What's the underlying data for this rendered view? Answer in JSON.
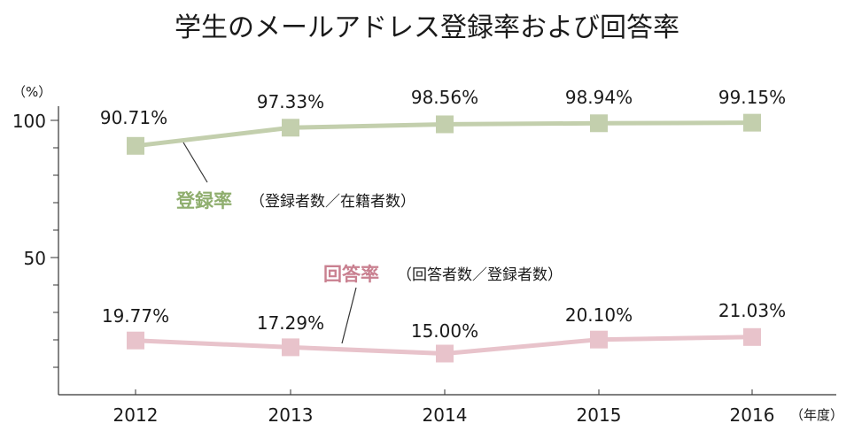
{
  "title": "学生のメールアドレス登録率および回答率",
  "chart_data": {
    "type": "line",
    "title": "学生のメールアドレス登録率および回答率",
    "categories": [
      "2012",
      "2013",
      "2014",
      "2015",
      "2016"
    ],
    "x_unit": "（年度）",
    "y_unit": "（%）",
    "ylim": [
      0,
      100
    ],
    "y_ticks": [
      "100",
      "50"
    ],
    "grid": false,
    "series": [
      {
        "name": "登録率",
        "description": "（登録者数／在籍者数）",
        "values": [
          90.71,
          97.33,
          98.56,
          98.94,
          99.15
        ],
        "labels": [
          "90.71%",
          "97.33%",
          "98.56%",
          "98.94%",
          "99.15%"
        ],
        "color": "#c3cfad"
      },
      {
        "name": "回答率",
        "description": "（回答者数／登録者数）",
        "values": [
          19.77,
          17.29,
          15.0,
          20.1,
          21.03
        ],
        "labels": [
          "19.77%",
          "17.29%",
          "15.00%",
          "20.10%",
          "21.03%"
        ],
        "color": "#e8c3cb"
      }
    ],
    "series_name_colors": [
      "#8fae6e",
      "#c98090"
    ]
  }
}
